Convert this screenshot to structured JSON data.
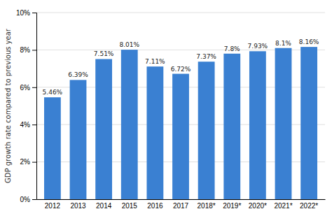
{
  "chart_data": {
    "type": "bar",
    "ylabel": "GDP growth rate compared to previous year",
    "categories": [
      "2012",
      "2013",
      "2014",
      "2015",
      "2016",
      "2017",
      "2018*",
      "2019*",
      "2020*",
      "2021*",
      "2022*"
    ],
    "values": [
      5.46,
      6.39,
      7.51,
      8.01,
      7.11,
      6.72,
      7.37,
      7.8,
      7.93,
      8.1,
      8.16
    ],
    "value_labels": [
      "5.46%",
      "6.39%",
      "7.51%",
      "8.01%",
      "7.11%",
      "6.72%",
      "7.37%",
      "7.8%",
      "7.93%",
      "8.1%",
      "8.16%"
    ],
    "data_labels": true,
    "color": "#3a80d2",
    "ylim": [
      0,
      10
    ],
    "yticks": [
      {
        "value": 0,
        "label": "0%"
      },
      {
        "value": 2,
        "label": "2%"
      },
      {
        "value": 4,
        "label": "4%"
      },
      {
        "value": 6,
        "label": "6%"
      },
      {
        "value": 8,
        "label": "8%"
      },
      {
        "value": 10,
        "label": "10%"
      }
    ],
    "grid": true
  }
}
